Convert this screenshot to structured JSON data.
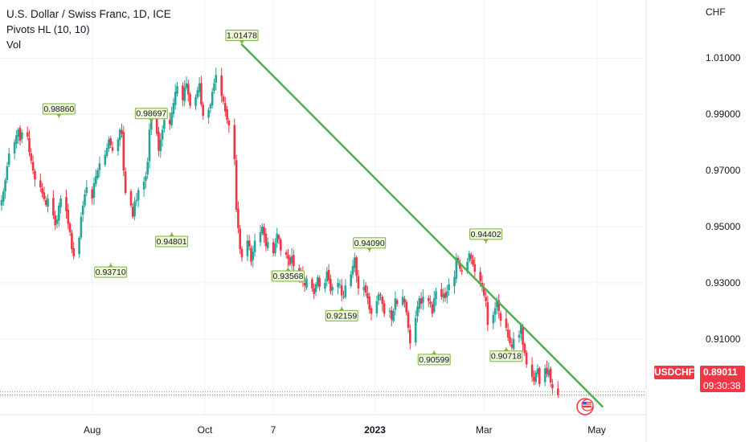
{
  "header": {
    "title": "U.S. Dollar / Swiss Franc, 1D, ICE",
    "indicator_pivots": "Pivots HL (10, 10)",
    "indicator_vol": "Vol"
  },
  "price_axis": {
    "unit": "CHF",
    "ticks": [
      "1.01000",
      "0.99000",
      "0.97000",
      "0.95000",
      "0.93000",
      "0.91000"
    ]
  },
  "time_axis": {
    "labels": [
      "Aug",
      "Oct",
      "7",
      "2023",
      "Mar",
      "May"
    ]
  },
  "last_price": {
    "symbol": "USDCHF",
    "value": "0.89011",
    "countdown": "09:30:38"
  },
  "colors": {
    "up": "#26a69a",
    "down": "#f23645",
    "trendline": "#4caf50",
    "pivot_box_fill": "#eef7d6",
    "pivot_box_border": "#7cb342",
    "grid": "#f0f3fa"
  },
  "chart_data": {
    "type": "candlestick",
    "title": "U.S. Dollar / Swiss Franc, 1D, ICE",
    "ylabel": "CHF",
    "ylim": [
      0.8825,
      1.0255
    ],
    "grid": true,
    "pivots": [
      {
        "label": "0.98860",
        "value": 0.9886,
        "type": "high",
        "date": "2022-07-14"
      },
      {
        "label": "0.93710",
        "value": 0.9371,
        "type": "low",
        "date": "2022-08-11"
      },
      {
        "label": "0.98697",
        "value": 0.98697,
        "type": "high",
        "date": "2022-09-02"
      },
      {
        "label": "0.94801",
        "value": 0.94801,
        "type": "low",
        "date": "2022-09-13"
      },
      {
        "label": "1.01478",
        "value": 1.01478,
        "type": "high",
        "date": "2022-10-21"
      },
      {
        "label": "0.93568",
        "value": 0.93568,
        "type": "low",
        "date": "2022-11-15"
      },
      {
        "label": "0.92159",
        "value": 0.92159,
        "type": "low",
        "date": "2022-12-14"
      },
      {
        "label": "0.94090",
        "value": 0.9409,
        "type": "high",
        "date": "2022-12-29"
      },
      {
        "label": "0.90599",
        "value": 0.90599,
        "type": "low",
        "date": "2023-02-02"
      },
      {
        "label": "0.94402",
        "value": 0.94402,
        "type": "high",
        "date": "2023-03-02"
      },
      {
        "label": "0.90718",
        "value": 0.90718,
        "type": "low",
        "date": "2023-03-13"
      }
    ],
    "trendline": {
      "start": {
        "date": "2022-10-21",
        "value": 1.0148
      },
      "end": {
        "date": "2023-05-04",
        "value": 0.886
      }
    },
    "last_price": 0.89011,
    "prev_close": 0.8912,
    "closes": [
      0.9595,
      0.9625,
      0.9665,
      0.9715,
      0.976,
      0.98,
      0.9825,
      0.9845,
      0.9805,
      0.9835,
      0.982,
      0.9765,
      0.9735,
      0.97,
      0.9668,
      0.964,
      0.9618,
      0.9598,
      0.9578,
      0.96,
      0.954,
      0.9505,
      0.9525,
      0.9575,
      0.96,
      0.9555,
      0.951,
      0.948,
      0.942,
      0.9395,
      0.946,
      0.9535,
      0.9575,
      0.9615,
      0.964,
      0.96,
      0.9655,
      0.968,
      0.97,
      0.9725,
      0.9755,
      0.978,
      0.981,
      0.979,
      0.977,
      0.981,
      0.9845,
      0.983,
      0.97,
      0.962,
      0.9575,
      0.9535,
      0.959,
      0.9595,
      0.963,
      0.966,
      0.968,
      0.973,
      0.9845,
      0.988,
      0.983,
      0.977,
      0.981,
      0.9845,
      0.988,
      0.9865,
      0.9905,
      0.994,
      0.998,
      1.0,
      0.995,
      0.9995,
      1.001,
      0.997,
      0.993,
      0.996,
      0.9985,
      1.001,
      0.9935,
      0.9895,
      0.9915,
      0.9935,
      0.998,
      1.001,
      1.004,
      0.9965,
      0.9945,
      0.991,
      0.988,
      0.986,
      0.974,
      0.956,
      0.9495,
      0.942,
      0.939,
      0.945,
      0.943,
      0.9375,
      0.941,
      0.945,
      0.948,
      0.95,
      0.947,
      0.943,
      0.9445,
      0.9405,
      0.944,
      0.9475,
      0.9455,
      0.9415,
      0.94,
      0.9385,
      0.9365,
      0.9395,
      0.936,
      0.932,
      0.9335,
      0.9305,
      0.929,
      0.9315,
      0.928,
      0.926,
      0.9295,
      0.932,
      0.9285,
      0.93,
      0.934,
      0.931,
      0.927,
      0.9285,
      0.93,
      0.9295,
      0.9255,
      0.925,
      0.929,
      0.933,
      0.936,
      0.939,
      0.9325,
      0.928,
      0.9285,
      0.9265,
      0.9245,
      0.9205,
      0.919,
      0.9235,
      0.926,
      0.9255,
      0.9225,
      0.919,
      0.92,
      0.917,
      0.92,
      0.9245,
      0.9225,
      0.925,
      0.923,
      0.9195,
      0.914,
      0.9085,
      0.9175,
      0.9215,
      0.9245,
      0.9225,
      0.925,
      0.9235,
      0.9225,
      0.919,
      0.9245,
      0.927,
      0.925,
      0.926,
      0.9245,
      0.927,
      0.9295,
      0.932,
      0.939,
      0.9375,
      0.935,
      0.934,
      0.9375,
      0.9405,
      0.9385,
      0.9365,
      0.934,
      0.9305,
      0.9285,
      0.9255,
      0.9235,
      0.915,
      0.9185,
      0.921,
      0.9235,
      0.92,
      0.9165,
      0.914,
      0.9105,
      0.9085,
      0.907,
      0.91,
      0.9115,
      0.915,
      0.908,
      0.905,
      0.901,
      0.8965,
      0.895,
      0.898,
      0.8995,
      0.894,
      0.8995,
      0.8975,
      0.899,
      0.8945,
      0.8925,
      0.8901
    ]
  }
}
